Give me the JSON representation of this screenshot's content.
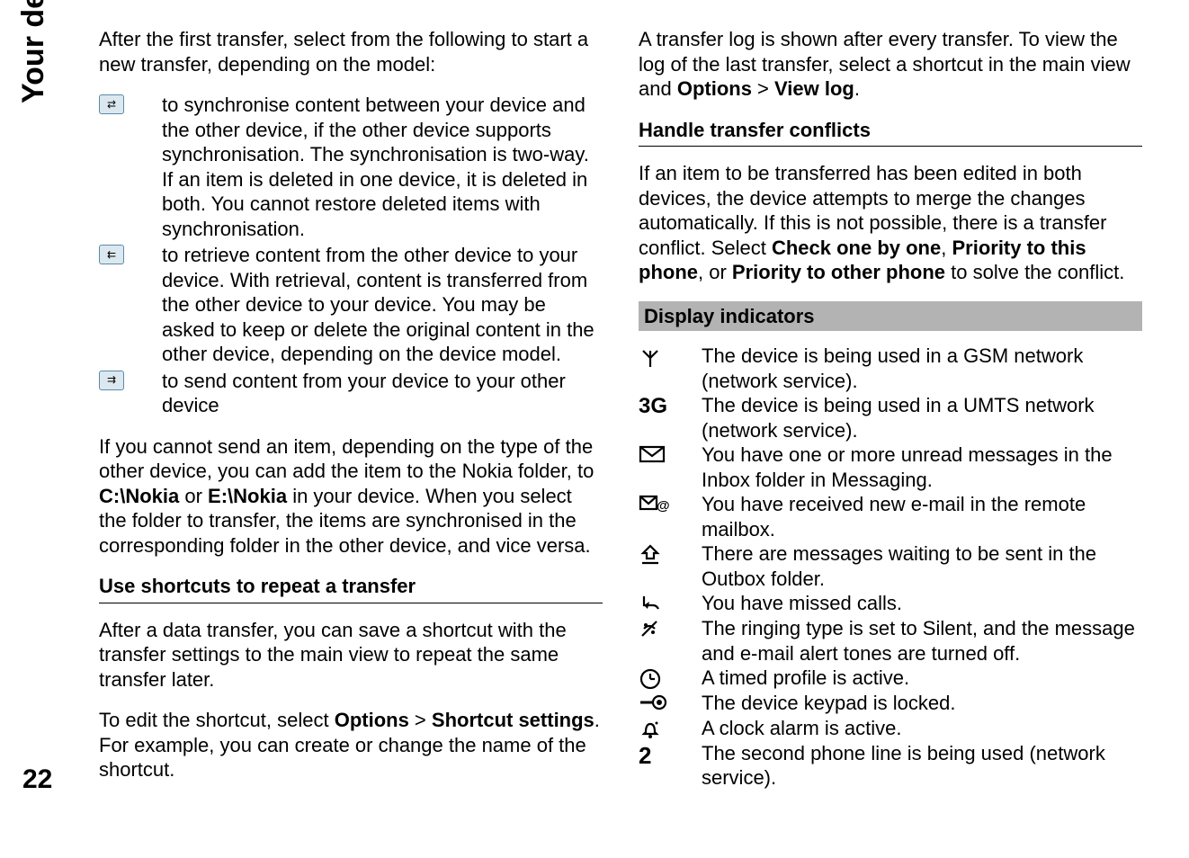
{
  "sidebar": {
    "label": "Your device"
  },
  "pageNumber": "22",
  "left": {
    "intro": "After the first transfer, select from the following to start a new transfer, depending on the model:",
    "items": [
      "to synchronise content between your device and the other device, if the other device supports synchronisation. The synchronisation is two-way. If an item is deleted in one device, it is deleted in both. You cannot restore deleted items with synchronisation.",
      "to retrieve content from the other device to your device. With retrieval, content is transferred from the other device to your device. You may be asked to keep or delete the original content in the other device, depending on the device model.",
      "to send content from your device to your other device"
    ],
    "para2a": "If you cannot send an item, depending on the type of the other device, you can add the item to the Nokia folder, to ",
    "para2b": "C:\\Nokia",
    "para2c": " or ",
    "para2d": "E:\\Nokia",
    "para2e": " in your device. When you select the folder to transfer, the items are synchronised in the corresponding folder in the other device, and vice versa.",
    "heading1": "Use shortcuts to repeat a transfer",
    "para3": "After a data transfer, you can save a shortcut with the transfer settings to the main view to repeat the same transfer later.",
    "para4a": "To edit the shortcut, select ",
    "para4b": "Options",
    "para4c": " > ",
    "para4d": "Shortcut settings",
    "para4e": ". For example, you can create or change the name of the shortcut."
  },
  "right": {
    "para1a": "A transfer log is shown after every transfer. To view the log of the last transfer, select a shortcut in the main view and ",
    "para1b": "Options",
    "para1c": " > ",
    "para1d": "View log",
    "para1e": ".",
    "heading1": "Handle transfer conflicts",
    "para2a": "If an item to be transferred has been edited in both devices, the device attempts to merge the changes automatically. If this is not possible, there is a transfer conflict. Select ",
    "para2b": "Check one by one",
    "para2c": ", ",
    "para2d": "Priority to this phone",
    "para2e": ", or ",
    "para2f": "Priority to other phone",
    "para2g": " to solve the conflict.",
    "heading2": "Display indicators",
    "indicators": [
      {
        "label": "gsm",
        "text": "The device is being used in a GSM network (network service)."
      },
      {
        "label": "3G",
        "text": "The device is being used in a UMTS network (network service)."
      },
      {
        "label": "envelope",
        "text": "You have one or more unread messages in the Inbox folder in Messaging."
      },
      {
        "label": "email-at",
        "text": "You have received new e-mail in the remote mailbox."
      },
      {
        "label": "outbox",
        "text": "There are messages waiting to be sent in the Outbox folder."
      },
      {
        "label": "missed",
        "text": "You have missed calls."
      },
      {
        "label": "silent",
        "text": "The ringing type is set to Silent, and the message and e-mail alert tones are turned off."
      },
      {
        "label": "clock",
        "text": "A timed profile is active."
      },
      {
        "label": "lock",
        "text": "The device keypad is locked."
      },
      {
        "label": "alarm",
        "text": "A clock alarm is active."
      },
      {
        "label": "line2",
        "text": "The second phone line is being used (network service)."
      }
    ]
  }
}
